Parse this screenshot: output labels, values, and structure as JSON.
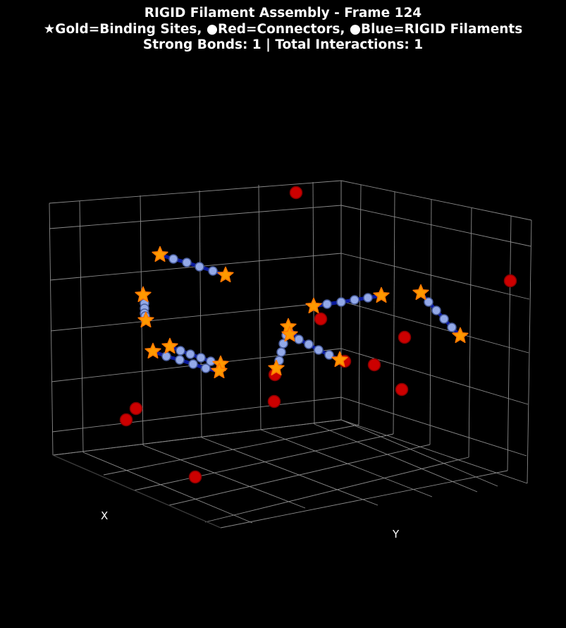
{
  "title": {
    "line1": "RIGID Filament Assembly - Frame 124",
    "line2": "★Gold=Binding Sites, ●Red=Connectors, ●Blue=RIGID Filaments",
    "line3": "Strong Bonds: 1 | Total Interactions: 1"
  },
  "colors": {
    "background": "#000000",
    "grid": "#8a8a8a",
    "binding_site": "#ff9900",
    "binding_site_edge": "#ff7700",
    "connector": "#cc0000",
    "connector_edge": "#880000",
    "filament_node": "#93a9e8",
    "filament_edge": "#4b5f9e",
    "filament_bond": "#0a1a9e"
  },
  "chart_data": {
    "type": "scatter3d",
    "title": "RIGID Filament Assembly - Frame 124",
    "xlabel": "X",
    "ylabel": "Y",
    "zlabel": "",
    "grid": true,
    "legend": "in title",
    "series": [
      {
        "name": "Binding Sites",
        "marker": "star",
        "points": [
          [
            227,
            361
          ],
          [
            320,
            390
          ],
          [
            203,
            418
          ],
          [
            207,
            454
          ],
          [
            217,
            498
          ],
          [
            241,
            491
          ],
          [
            313,
            516
          ],
          [
            311,
            526
          ],
          [
            409,
            463
          ],
          [
            411,
            474
          ],
          [
            392,
            522
          ],
          [
            445,
            434
          ],
          [
            541,
            419
          ],
          [
            482,
            510
          ],
          [
            597,
            415
          ],
          [
            653,
            476
          ]
        ]
      },
      {
        "name": "Connectors",
        "marker": "circle",
        "points": [
          [
            420,
            273
          ],
          [
            724,
            398
          ],
          [
            455,
            452
          ],
          [
            574,
            478
          ],
          [
            489,
            512
          ],
          [
            531,
            517
          ],
          [
            390,
            531
          ],
          [
            570,
            552
          ],
          [
            389,
            569
          ],
          [
            193,
            579
          ],
          [
            179,
            595
          ],
          [
            277,
            676
          ]
        ]
      },
      {
        "name": "RIGID Filaments",
        "marker": "circle",
        "filaments": [
          [
            [
              227,
              361
            ],
            [
              246,
              367
            ],
            [
              265,
              372
            ],
            [
              283,
              378
            ],
            [
              302,
              384
            ],
            [
              320,
              390
            ]
          ],
          [
            [
              203,
              418
            ],
            [
              205,
              430
            ],
            [
              205,
              437
            ],
            [
              205,
              444
            ],
            [
              206,
              448
            ],
            [
              207,
              454
            ]
          ],
          [
            [
              217,
              498
            ],
            [
              236,
              505
            ],
            [
              255,
              510
            ],
            [
              274,
              516
            ],
            [
              292,
              522
            ],
            [
              311,
              526
            ]
          ],
          [
            [
              241,
              491
            ],
            [
              256,
              497
            ],
            [
              270,
              502
            ],
            [
              285,
              507
            ],
            [
              299,
              512
            ],
            [
              313,
              516
            ]
          ],
          [
            [
              411,
              474
            ],
            [
              406,
              475
            ],
            [
              402,
              487
            ],
            [
              399,
              499
            ],
            [
              396,
              511
            ],
            [
              392,
              522
            ]
          ],
          [
            [
              409,
              463
            ],
            [
              424,
              481
            ],
            [
              438,
              488
            ],
            [
              452,
              496
            ],
            [
              467,
              503
            ],
            [
              482,
              510
            ]
          ],
          [
            [
              445,
              434
            ],
            [
              464,
              431
            ],
            [
              484,
              428
            ],
            [
              503,
              425
            ],
            [
              522,
              422
            ],
            [
              541,
              419
            ]
          ],
          [
            [
              597,
              415
            ],
            [
              608,
              428
            ],
            [
              619,
              440
            ],
            [
              630,
              452
            ],
            [
              641,
              464
            ],
            [
              653,
              476
            ]
          ]
        ]
      }
    ]
  }
}
